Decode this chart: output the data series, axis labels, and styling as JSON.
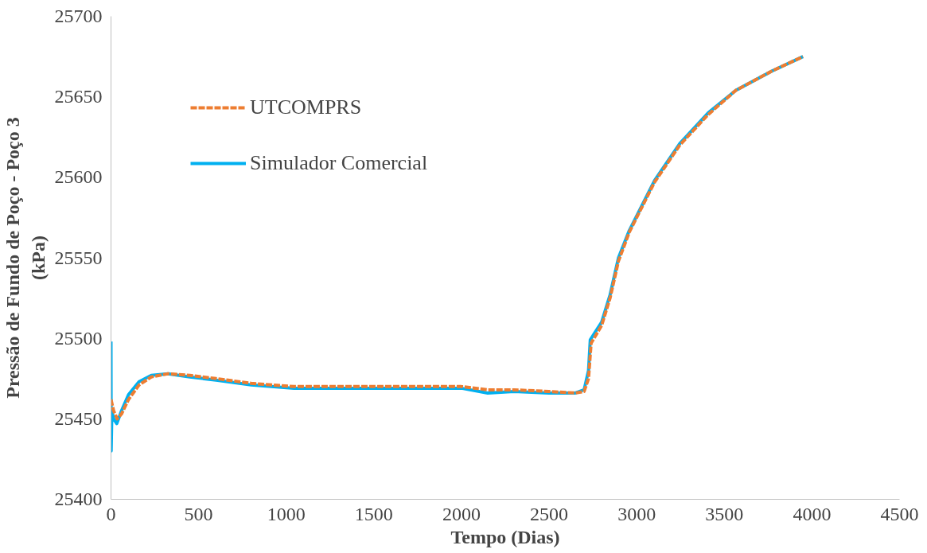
{
  "chart_data": {
    "type": "line",
    "xlabel": "Tempo (Dias)",
    "ylabel": "Pressão de Fundo de Poço - Poço 3\n(kPa)",
    "xlim": [
      0,
      4500
    ],
    "xticks": [
      0,
      500,
      1000,
      1500,
      2000,
      2500,
      3000,
      3500,
      4000,
      4500
    ],
    "ylim": [
      25400,
      25700
    ],
    "yticks": [
      25400,
      25450,
      25500,
      25550,
      25600,
      25650,
      25700
    ],
    "grid": false,
    "legend": "top left",
    "series": [
      {
        "name": "UTCOMPRS",
        "color": "#ed7d31",
        "line_style": "dashed",
        "x": [
          0,
          15,
          35,
          60,
          100,
          160,
          230,
          325,
          450,
          600,
          800,
          1044,
          1500,
          2000,
          2150,
          2300,
          2500,
          2650,
          2700,
          2725,
          2740,
          2800,
          2848,
          2896,
          2958,
          3102,
          3246,
          3408,
          3566,
          3772,
          3949
        ],
        "values": [
          25462,
          25455,
          25450,
          25453,
          25462,
          25471,
          25476,
          25478,
          25477,
          25475,
          25472,
          25470,
          25470,
          25470,
          25468,
          25468,
          25467,
          25466,
          25467,
          25475,
          25497,
          25508,
          25525,
          25548,
          25566,
          25597,
          25620,
          25639,
          25654,
          25666,
          25675
        ]
      },
      {
        "name": "Simulador Comercial",
        "color": "#00b0f0",
        "line_style": "solid",
        "x": [
          0,
          1,
          5,
          15,
          33,
          60,
          100,
          160,
          230,
          325,
          450,
          600,
          800,
          1044,
          1500,
          2000,
          2150,
          2300,
          2500,
          2650,
          2700,
          2725,
          2735,
          2800,
          2848,
          2896,
          2958,
          3102,
          3246,
          3408,
          3566,
          3772,
          3949
        ],
        "values": [
          25498,
          25430,
          25455,
          25450,
          25447,
          25455,
          25465,
          25473,
          25477,
          25478,
          25476,
          25474,
          25471,
          25469,
          25469,
          25469,
          25466,
          25467,
          25466,
          25466,
          25468,
          25480,
          25499,
          25510,
          25527,
          25550,
          25567,
          25598,
          25621,
          25640,
          25654,
          25666,
          25675
        ]
      }
    ]
  }
}
